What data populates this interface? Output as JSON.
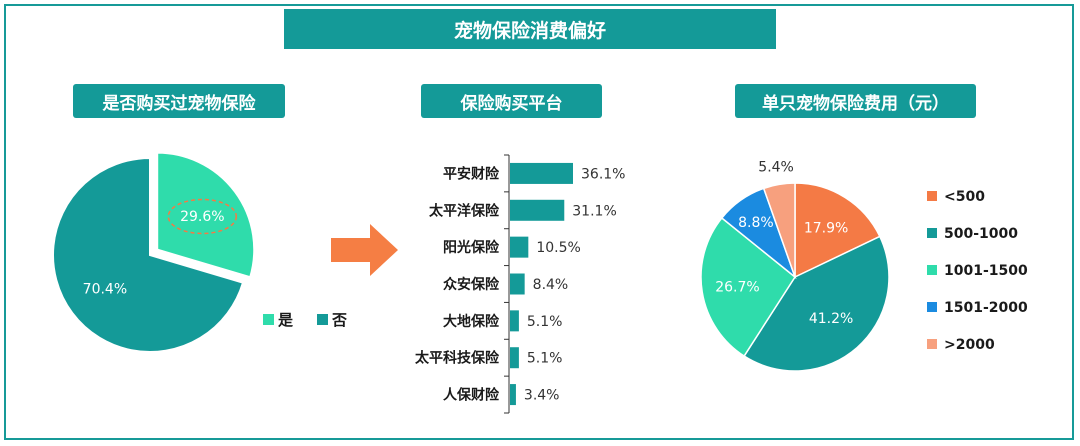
{
  "title": "宠物保险消费偏好",
  "colors": {
    "teal": "#149a98",
    "mint": "#2fdcab",
    "orange": "#f47a45",
    "blue": "#1b8be0",
    "salmon": "#f7a07e",
    "arrow": "#f57e44"
  },
  "chart_data": [
    {
      "type": "pie",
      "title": "是否购买过宠物保险",
      "slices": [
        {
          "name": "是",
          "value": 29.6,
          "label": "29.6%",
          "color": "#2fdcab"
        },
        {
          "name": "否",
          "value": 70.4,
          "label": "70.4%",
          "color": "#149a98"
        }
      ],
      "legend": [
        "是",
        "否"
      ],
      "legend_position": "bottom-right"
    },
    {
      "type": "bar",
      "orientation": "horizontal",
      "title": "保险购买平台",
      "categories": [
        "平安财险",
        "太平洋保险",
        "阳光保险",
        "众安保险",
        "大地保险",
        "太平科技保险",
        "人保财险"
      ],
      "values": [
        36.1,
        31.1,
        10.5,
        8.4,
        5.1,
        5.1,
        3.4
      ],
      "labels": [
        "36.1%",
        "31.1%",
        "10.5%",
        "8.4%",
        "5.1%",
        "5.1%",
        "3.4%"
      ],
      "color": "#149a98"
    },
    {
      "type": "pie",
      "title": "单只宠物保险费用（元）",
      "slices": [
        {
          "name": "<500",
          "value": 17.9,
          "label": "17.9%",
          "color": "#f47a45"
        },
        {
          "name": "500-1000",
          "value": 41.2,
          "label": "41.2%",
          "color": "#149a98"
        },
        {
          "name": "1001-1500",
          "value": 26.7,
          "label": "26.7%",
          "color": "#2fdcab"
        },
        {
          "name": "1501-2000",
          "value": 8.8,
          "label": "8.8%",
          "color": "#1b8be0"
        },
        {
          "name": ">2000",
          "value": 5.4,
          "label": "5.4%",
          "color": "#f7a07e"
        }
      ],
      "legend_position": "right"
    }
  ]
}
